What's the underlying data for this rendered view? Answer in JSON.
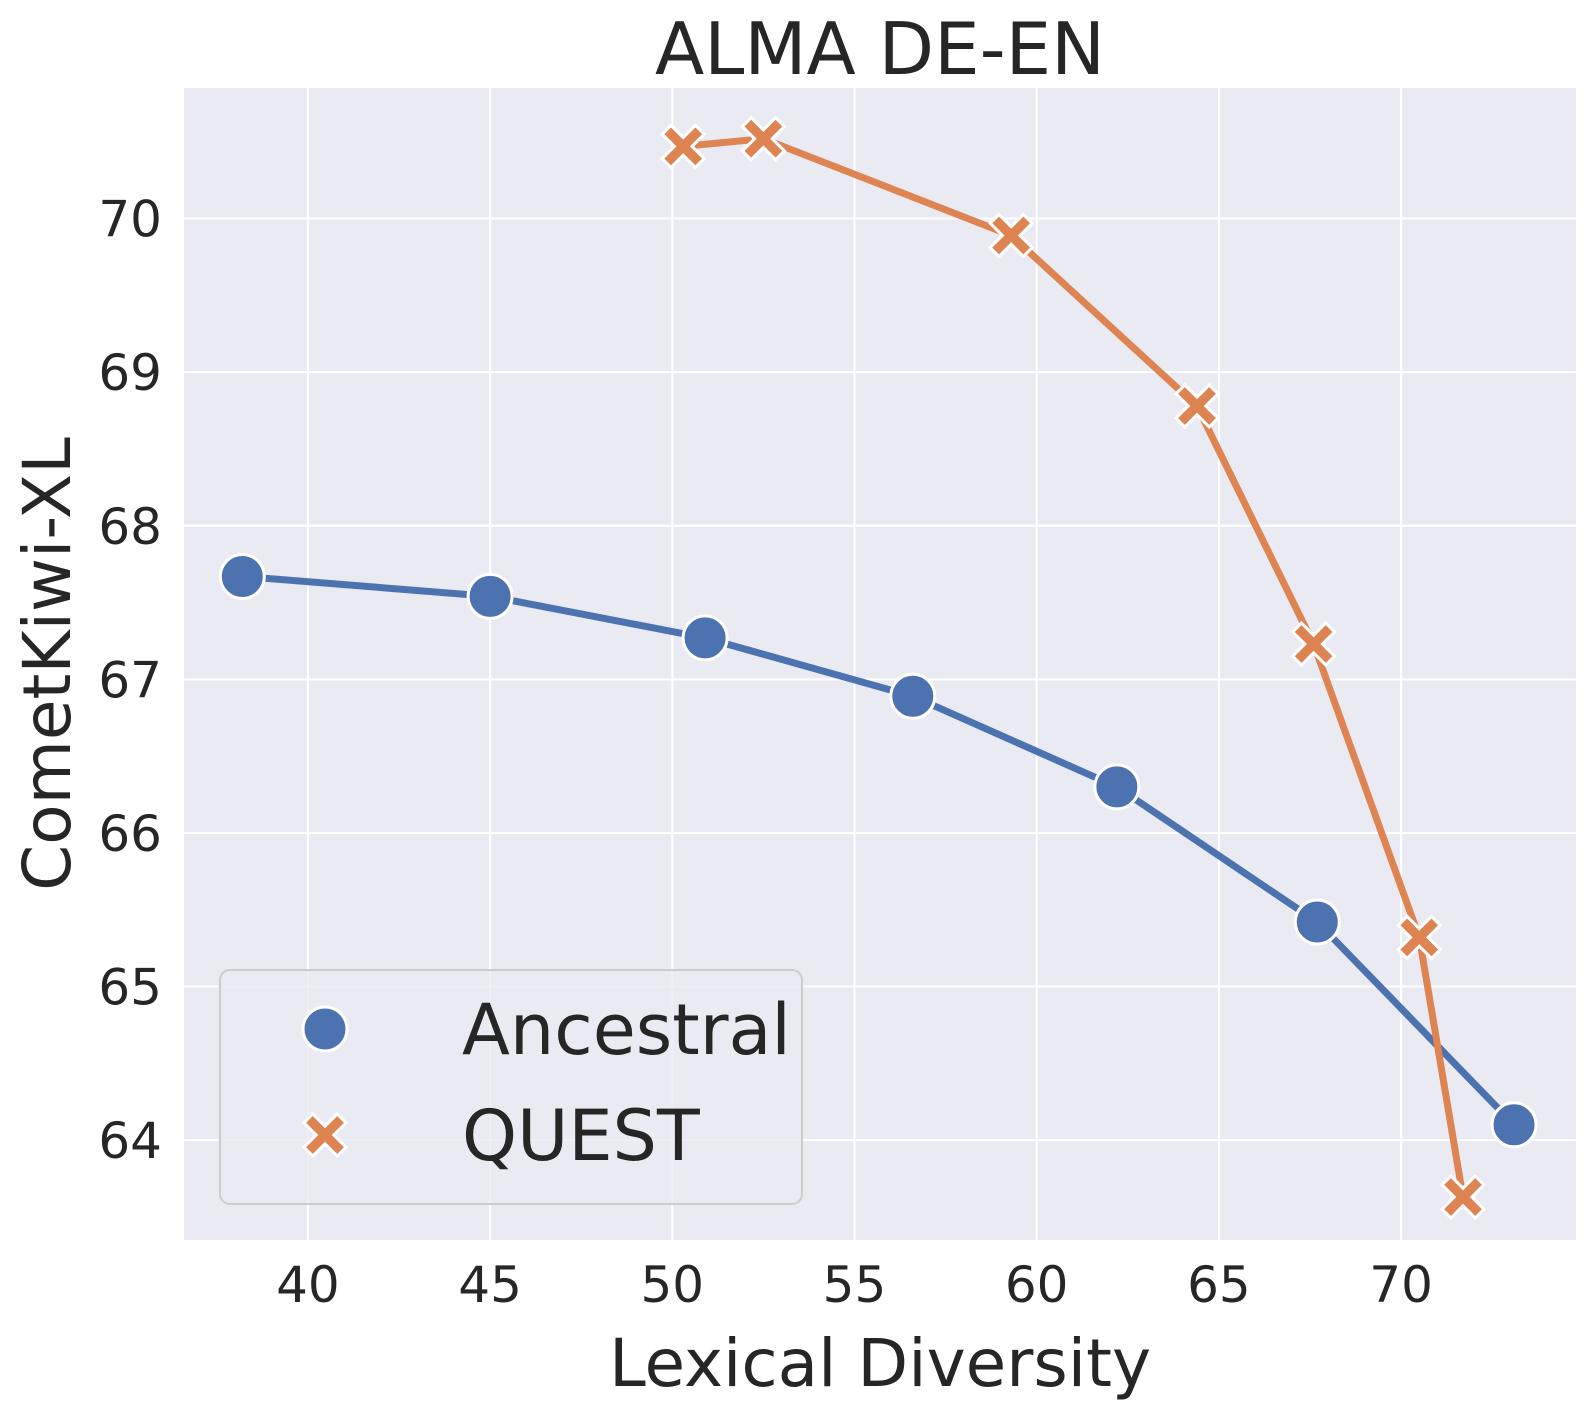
{
  "chart_data": {
    "type": "line",
    "title": "ALMA DE-EN",
    "xlabel": "Lexical Diversity",
    "ylabel": "CometKiwi-XL",
    "xlim": [
      36.6,
      74.8
    ],
    "ylim": [
      63.35,
      70.85
    ],
    "xticks": [
      40,
      45,
      50,
      55,
      60,
      65,
      70
    ],
    "yticks": [
      64,
      65,
      66,
      67,
      68,
      69,
      70
    ],
    "grid": true,
    "legend_position": "lower-left",
    "series": [
      {
        "name": "Ancestral",
        "marker": "circle",
        "color": "#4c72b0",
        "x": [
          38.2,
          45.0,
          50.9,
          56.6,
          62.2,
          67.7,
          73.1
        ],
        "y": [
          67.67,
          67.54,
          67.27,
          66.89,
          66.3,
          65.42,
          64.1
        ]
      },
      {
        "name": "QUEST",
        "marker": "x",
        "color": "#dd8452",
        "x": [
          50.3,
          52.5,
          59.3,
          64.4,
          67.6,
          70.5,
          71.7
        ],
        "y": [
          70.47,
          70.52,
          69.89,
          68.78,
          67.23,
          65.32,
          63.63
        ]
      }
    ]
  }
}
